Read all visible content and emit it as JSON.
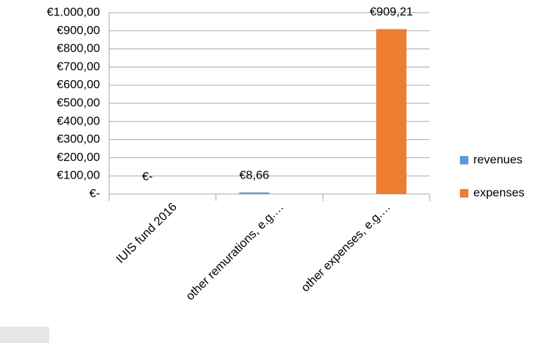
{
  "chart_data": {
    "type": "bar",
    "categories": [
      "IUIS fund 2016",
      "other remurations, e.g.…",
      "other expenses, e.g.…"
    ],
    "series": [
      {
        "name": "revenues",
        "color": "#5b9bd5",
        "values": [
          0,
          8.66,
          null
        ],
        "value_labels": [
          "€-",
          "€8,66",
          null
        ]
      },
      {
        "name": "expenses",
        "color": "#ed7d31",
        "values": [
          null,
          null,
          909.21
        ],
        "value_labels": [
          null,
          null,
          "€909,21"
        ]
      }
    ],
    "ylim": [
      0,
      1000
    ],
    "yticks": [
      {
        "value": 0,
        "label": "€-"
      },
      {
        "value": 100,
        "label": "€100,00"
      },
      {
        "value": 200,
        "label": "€200,00"
      },
      {
        "value": 300,
        "label": "€300,00"
      },
      {
        "value": 400,
        "label": "€400,00"
      },
      {
        "value": 500,
        "label": "€500,00"
      },
      {
        "value": 600,
        "label": "€600,00"
      },
      {
        "value": 700,
        "label": "€700,00"
      },
      {
        "value": 800,
        "label": "€800,00"
      },
      {
        "value": 900,
        "label": "€900,00"
      },
      {
        "value": 1000,
        "label": "€1.000,00"
      }
    ],
    "grid": true,
    "legend": "right"
  }
}
